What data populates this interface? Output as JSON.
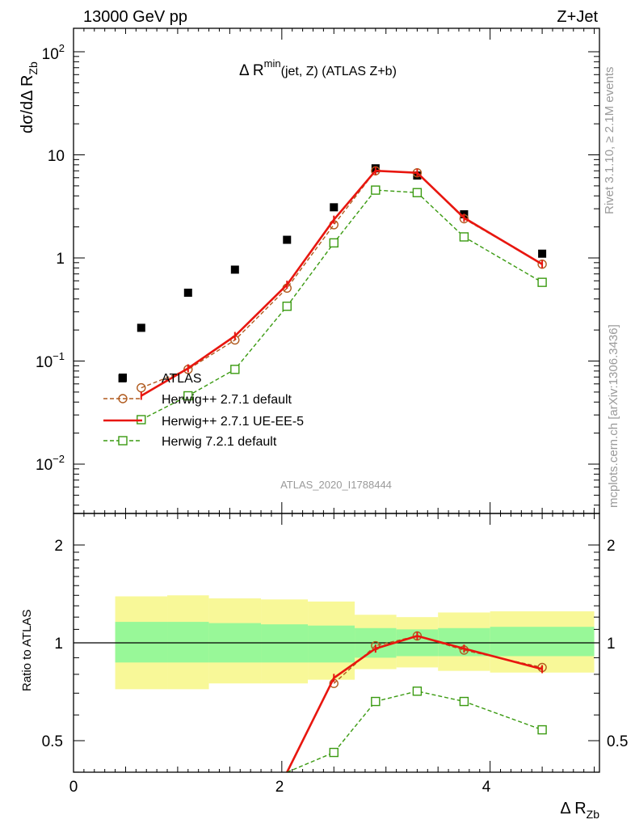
{
  "header": {
    "left": "13000 GeV pp",
    "right": "Z+Jet"
  },
  "side": {
    "rivet": "Rivet 3.1.10, ≥ 2.1M events",
    "mcplots": "mcplots.cern.ch [arXiv:1306.3436]"
  },
  "main": {
    "title_prefix": "Δ R",
    "title_sup": "min",
    "title_suffix": "(jet, Z) (ATLAS Z+b)",
    "ylabel": "dσ/dΔ R",
    "ylabel_sub": "Zb",
    "analysis_id": "ATLAS_2020_I1788444",
    "ytick_labels": [
      "10",
      "10",
      "1",
      "10",
      "10"
    ],
    "ytick_sups": [
      "2",
      "",
      "",
      "−1",
      "−2"
    ]
  },
  "ratio": {
    "ylabel": "Ratio to ATLAS",
    "ytick_labels": [
      "2",
      "1",
      "0.5"
    ],
    "xtick_labels": [
      "0",
      "2",
      "4"
    ],
    "xlabel": "Δ R",
    "xlabel_sub": "Zb"
  },
  "legend": [
    {
      "label": "ATLAS"
    },
    {
      "label": "Herwig++ 2.7.1 default"
    },
    {
      "label": "Herwig++ 2.7.1 UE-EE-5"
    },
    {
      "label": "Herwig 7.2.1 default"
    }
  ],
  "colors": {
    "data": "#000000",
    "herwigpp_default": "#b05a1e",
    "herwigpp_ueee5": "#e8160f",
    "herwig7": "#3a9a10",
    "band_inner": "#98f898",
    "band_outer": "#f8f898"
  },
  "chart_data": [
    {
      "type": "scatter",
      "panel": "main",
      "log_y": true,
      "xlim": [
        0,
        5.05
      ],
      "ylim": [
        0.003,
        180
      ],
      "series": [
        {
          "name": "ATLAS",
          "style": "square-marker",
          "x": [
            0.47,
            0.65,
            1.1,
            1.55,
            2.05,
            2.5,
            2.9,
            3.3,
            3.75,
            4.5
          ],
          "y": [
            0.068,
            0.21,
            0.46,
            0.77,
            1.5,
            3.1,
            7.4,
            6.3,
            2.65,
            1.1
          ]
        },
        {
          "name": "Herwig++ 2.7.1 default",
          "style": "dashed-circle",
          "x": [
            0.65,
            1.1,
            1.55,
            2.05,
            2.5,
            2.9,
            3.3,
            3.75,
            4.5
          ],
          "y": [
            0.055,
            0.083,
            0.16,
            0.51,
            2.1,
            7.0,
            6.7,
            2.4,
            0.87
          ]
        },
        {
          "name": "Herwig++ 2.7.1 UE-EE-5",
          "style": "solid-line",
          "x": [
            0.65,
            1.1,
            1.55,
            2.05,
            2.5,
            2.9,
            3.3,
            3.75,
            4.5
          ],
          "y": [
            0.046,
            0.085,
            0.175,
            0.55,
            2.35,
            7.0,
            6.7,
            2.45,
            0.87
          ]
        },
        {
          "name": "Herwig 7.2.1 default",
          "style": "dashed-square",
          "x": [
            0.65,
            1.1,
            1.55,
            2.05,
            2.5,
            2.9,
            3.3,
            3.75,
            4.5
          ],
          "y": [
            0.027,
            0.046,
            0.083,
            0.34,
            1.4,
            4.55,
            4.3,
            1.6,
            0.58
          ]
        }
      ]
    },
    {
      "type": "line",
      "panel": "ratio",
      "log_y": true,
      "xlim": [
        0,
        5.05
      ],
      "ylim": [
        0.38,
        2.4
      ],
      "ylabel": "Ratio to ATLAS",
      "bands": {
        "x_edges": [
          0.4,
          0.9,
          1.3,
          1.8,
          2.25,
          2.7,
          3.1,
          3.5,
          4.0,
          5.0
        ],
        "inner_lo": [
          0.87,
          0.87,
          0.87,
          0.87,
          0.87,
          0.9,
          0.91,
          0.91,
          0.91
        ],
        "inner_hi": [
          1.16,
          1.16,
          1.15,
          1.14,
          1.13,
          1.11,
          1.1,
          1.11,
          1.12
        ],
        "outer_lo": [
          0.72,
          0.72,
          0.75,
          0.75,
          0.77,
          0.83,
          0.84,
          0.82,
          0.81
        ],
        "outer_hi": [
          1.39,
          1.4,
          1.37,
          1.36,
          1.34,
          1.22,
          1.2,
          1.24,
          1.25
        ]
      },
      "series": [
        {
          "name": "Herwig++ 2.7.1 default",
          "style": "dashed-circle",
          "x": [
            2.5,
            2.9,
            3.3,
            3.75,
            4.5
          ],
          "y": [
            0.75,
            0.98,
            1.05,
            0.95,
            0.84
          ]
        },
        {
          "name": "Herwig++ 2.7.1 UE-EE-5",
          "style": "solid-line",
          "x": [
            2.05,
            2.5,
            2.9,
            3.3,
            3.75,
            4.5
          ],
          "y": [
            0.37,
            0.78,
            0.96,
            1.05,
            0.96,
            0.83
          ]
        },
        {
          "name": "Herwig 7.2.1 default",
          "style": "dashed-square",
          "x": [
            2.05,
            2.5,
            2.9,
            3.3,
            3.75,
            4.5
          ],
          "y": [
            0.34,
            0.46,
            0.66,
            0.71,
            0.66,
            0.54
          ]
        }
      ]
    }
  ]
}
